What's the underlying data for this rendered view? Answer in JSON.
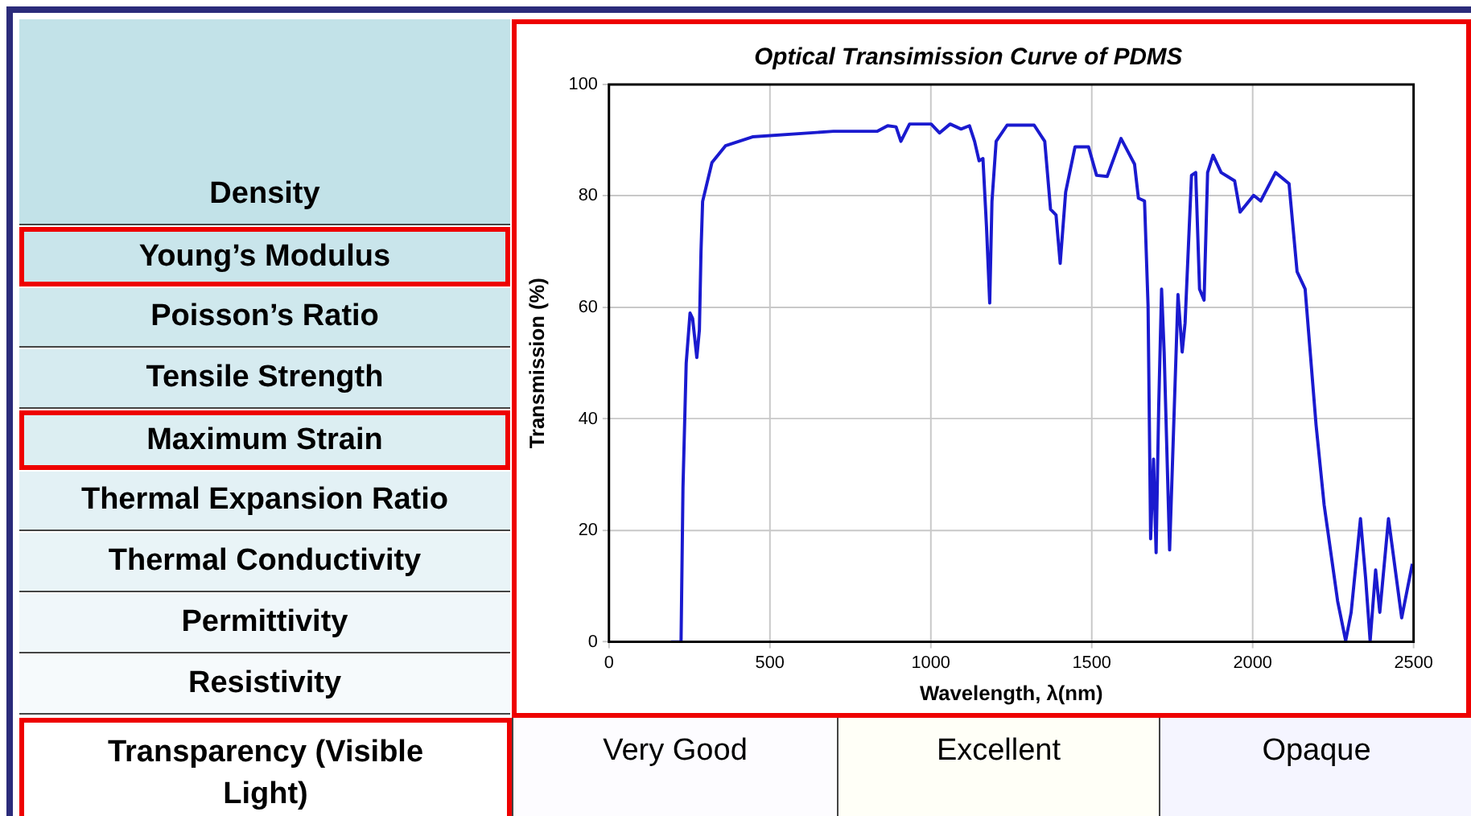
{
  "chart_data": [
    {
      "type": "other",
      "annotations": [
        "Density",
        "Young’s Modulus",
        "Poisson’s Ratio",
        "Tensile Strength",
        "Maximum Strain",
        "Thermal Expansion Ratio",
        "Thermal Conductivity",
        "Permittivity",
        "Resistivity",
        "Transparency (Visible Light)",
        "Very Good",
        "Excellent",
        "Opaque"
      ]
    },
    {
      "type": "line",
      "title": "Optical Transimission Curve of PDMS",
      "xlabel": "Wavelength, λ(nm)",
      "ylabel": "Transmission (%)",
      "xlim": [
        0,
        2500
      ],
      "xticks": [
        0,
        500,
        1000,
        1500,
        2000,
        2500
      ],
      "ylim": [
        0,
        100
      ],
      "yticks": [
        0,
        20,
        40,
        60,
        80,
        100
      ],
      "grid": true,
      "marker": "none",
      "line_style": "solid",
      "legend": false,
      "series": [
        {
          "color": "#1a1acf",
          "x": [
            193,
            224,
            230,
            240,
            252,
            260,
            273,
            281,
            286,
            291,
            320,
            362,
            446,
            698,
            833,
            866,
            892,
            907,
            934,
            1001,
            1027,
            1060,
            1094,
            1120,
            1136,
            1150,
            1162,
            1173,
            1183,
            1190,
            1203,
            1237,
            1321,
            1354,
            1372,
            1389,
            1402,
            1419,
            1448,
            1490,
            1515,
            1548,
            1591,
            1633,
            1645,
            1664,
            1675,
            1683,
            1692,
            1700,
            1708,
            1717,
            1725,
            1742,
            1768,
            1781,
            1790,
            1810,
            1823,
            1835,
            1849,
            1860,
            1877,
            1902,
            1944,
            1961,
            2003,
            2025,
            2071,
            2113,
            2138,
            2163,
            2197,
            2222,
            2264,
            2289,
            2306,
            2335,
            2351,
            2365,
            2382,
            2395,
            2422,
            2463,
            2496
          ],
          "values": [
            0,
            0,
            27.7,
            50,
            59,
            58,
            51,
            56,
            70,
            79,
            86,
            89,
            90.6,
            91.6,
            91.6,
            92.6,
            92.4,
            89.8,
            92.9,
            92.9,
            91.3,
            92.9,
            92,
            92.6,
            89.8,
            86.3,
            86.7,
            74.5,
            60.8,
            79,
            89.8,
            92.7,
            92.7,
            89.8,
            77.6,
            76.6,
            67.9,
            80.7,
            88.8,
            88.8,
            83.7,
            83.5,
            90.3,
            85.7,
            79.6,
            79.1,
            60.3,
            18.5,
            32.8,
            16,
            42,
            63.3,
            52,
            16.5,
            62.3,
            52,
            57.2,
            83.7,
            84.2,
            63.3,
            61.3,
            84.2,
            87.3,
            84.2,
            82.7,
            77.1,
            80.1,
            79.1,
            84.2,
            82.2,
            66.4,
            63.3,
            38.9,
            24.6,
            7.3,
            0.2,
            5.3,
            22.1,
            11.4,
            0.2,
            12.9,
            5.3,
            22.1,
            4.3,
            14
          ]
        }
      ]
    }
  ]
}
